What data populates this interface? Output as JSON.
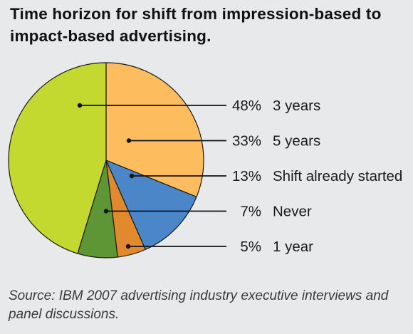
{
  "chart_data": {
    "type": "pie",
    "title": [
      "Time horizon for shift from impression-based to",
      "impact-based advertising."
    ],
    "slices": [
      {
        "label": "3 years",
        "value": 48,
        "value_label": "48%",
        "color": "#c4d930"
      },
      {
        "label": "5 years",
        "value": 33,
        "value_label": "33%",
        "color": "#fdbd5f"
      },
      {
        "label": "Shift already started",
        "value": 13,
        "value_label": "13%",
        "color": "#4a86c8"
      },
      {
        "label": "Never",
        "value": 7,
        "value_label": "7%",
        "color": "#5e9636"
      },
      {
        "label": "1 year",
        "value": 5,
        "value_label": "5%",
        "color": "#e08a2d"
      }
    ],
    "slice_draw_order": [
      "5 years",
      "Shift already started",
      "1 year",
      "Never",
      "3 years"
    ],
    "legend_placement": "right",
    "source": [
      "Source: IBM 2007 advertising industry executive interviews and",
      "panel discussions."
    ]
  }
}
